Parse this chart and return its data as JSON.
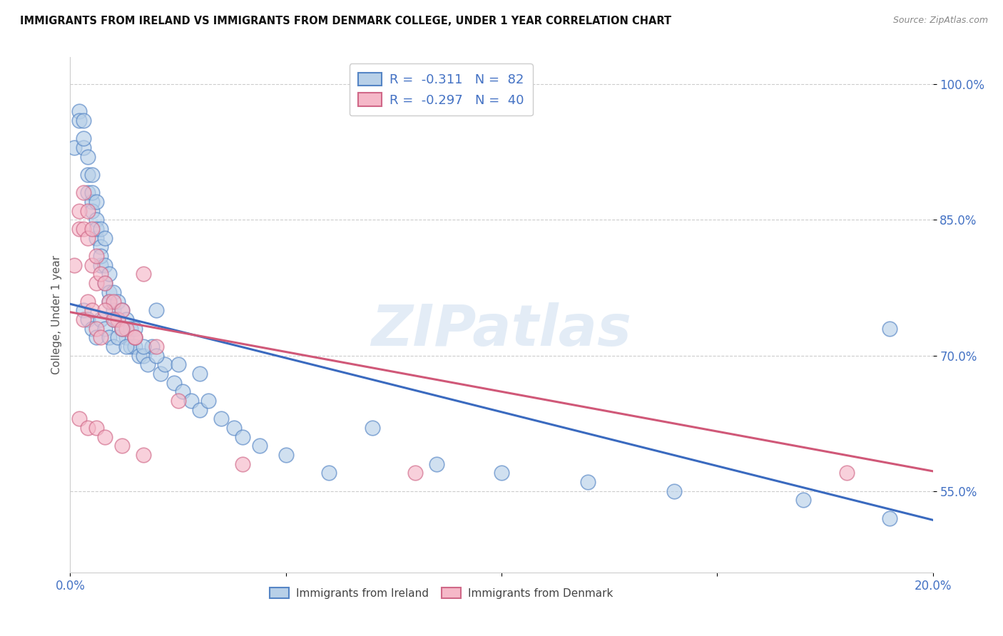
{
  "title": "IMMIGRANTS FROM IRELAND VS IMMIGRANTS FROM DENMARK COLLEGE, UNDER 1 YEAR CORRELATION CHART",
  "source": "Source: ZipAtlas.com",
  "ylabel": "College, Under 1 year",
  "x_min": 0.0,
  "x_max": 0.2,
  "y_min": 0.46,
  "y_max": 1.03,
  "x_ticks": [
    0.0,
    0.05,
    0.1,
    0.15,
    0.2
  ],
  "x_tick_labels": [
    "0.0%",
    "",
    "",
    "",
    "20.0%"
  ],
  "y_ticks": [
    0.55,
    0.7,
    0.85,
    1.0
  ],
  "y_tick_labels": [
    "55.0%",
    "70.0%",
    "85.0%",
    "100.0%"
  ],
  "ireland_fill": "#b8d0e8",
  "denmark_fill": "#f5b8c8",
  "ireland_edge": "#5585c5",
  "denmark_edge": "#d06888",
  "ireland_line_color": "#3a6abf",
  "denmark_line_color": "#d05878",
  "ireland_R": -0.311,
  "ireland_N": 82,
  "denmark_R": -0.297,
  "denmark_N": 40,
  "watermark": "ZIPatlas",
  "legend_ireland": "Immigrants from Ireland",
  "legend_denmark": "Immigrants from Denmark",
  "ireland_line_x0": 0.0,
  "ireland_line_y0": 0.757,
  "ireland_line_x1": 0.2,
  "ireland_line_y1": 0.518,
  "denmark_line_x0": 0.0,
  "denmark_line_y0": 0.748,
  "denmark_line_x1": 0.2,
  "denmark_line_y1": 0.572,
  "ireland_x": [
    0.001,
    0.002,
    0.002,
    0.003,
    0.003,
    0.003,
    0.004,
    0.004,
    0.004,
    0.005,
    0.005,
    0.005,
    0.005,
    0.006,
    0.006,
    0.006,
    0.006,
    0.007,
    0.007,
    0.007,
    0.007,
    0.008,
    0.008,
    0.008,
    0.009,
    0.009,
    0.009,
    0.01,
    0.01,
    0.01,
    0.011,
    0.011,
    0.012,
    0.012,
    0.013,
    0.013,
    0.014,
    0.014,
    0.015,
    0.015,
    0.016,
    0.017,
    0.018,
    0.019,
    0.02,
    0.021,
    0.022,
    0.024,
    0.026,
    0.028,
    0.03,
    0.032,
    0.035,
    0.038,
    0.04,
    0.044,
    0.05,
    0.06,
    0.07,
    0.085,
    0.1,
    0.12,
    0.14,
    0.17,
    0.19,
    0.003,
    0.004,
    0.005,
    0.006,
    0.007,
    0.008,
    0.009,
    0.01,
    0.011,
    0.012,
    0.013,
    0.015,
    0.017,
    0.02,
    0.025,
    0.03,
    0.19
  ],
  "ireland_y": [
    0.93,
    0.97,
    0.96,
    0.93,
    0.94,
    0.96,
    0.92,
    0.9,
    0.88,
    0.87,
    0.86,
    0.88,
    0.9,
    0.83,
    0.85,
    0.87,
    0.84,
    0.82,
    0.8,
    0.84,
    0.81,
    0.78,
    0.8,
    0.83,
    0.77,
    0.79,
    0.76,
    0.75,
    0.77,
    0.74,
    0.74,
    0.76,
    0.73,
    0.75,
    0.72,
    0.74,
    0.71,
    0.73,
    0.71,
    0.73,
    0.7,
    0.7,
    0.69,
    0.71,
    0.75,
    0.68,
    0.69,
    0.67,
    0.66,
    0.65,
    0.64,
    0.65,
    0.63,
    0.62,
    0.61,
    0.6,
    0.59,
    0.57,
    0.62,
    0.58,
    0.57,
    0.56,
    0.55,
    0.54,
    0.52,
    0.75,
    0.74,
    0.73,
    0.72,
    0.74,
    0.73,
    0.72,
    0.71,
    0.72,
    0.73,
    0.71,
    0.72,
    0.71,
    0.7,
    0.69,
    0.68,
    0.73
  ],
  "denmark_x": [
    0.001,
    0.002,
    0.002,
    0.003,
    0.003,
    0.004,
    0.004,
    0.005,
    0.005,
    0.006,
    0.006,
    0.007,
    0.008,
    0.009,
    0.01,
    0.011,
    0.012,
    0.013,
    0.015,
    0.017,
    0.003,
    0.004,
    0.005,
    0.006,
    0.007,
    0.008,
    0.01,
    0.012,
    0.015,
    0.02,
    0.002,
    0.004,
    0.006,
    0.008,
    0.012,
    0.017,
    0.025,
    0.04,
    0.08,
    0.18
  ],
  "denmark_y": [
    0.8,
    0.84,
    0.86,
    0.88,
    0.84,
    0.86,
    0.83,
    0.8,
    0.84,
    0.81,
    0.78,
    0.79,
    0.78,
    0.76,
    0.76,
    0.74,
    0.75,
    0.73,
    0.72,
    0.79,
    0.74,
    0.76,
    0.75,
    0.73,
    0.72,
    0.75,
    0.74,
    0.73,
    0.72,
    0.71,
    0.63,
    0.62,
    0.62,
    0.61,
    0.6,
    0.59,
    0.65,
    0.58,
    0.57,
    0.57
  ]
}
